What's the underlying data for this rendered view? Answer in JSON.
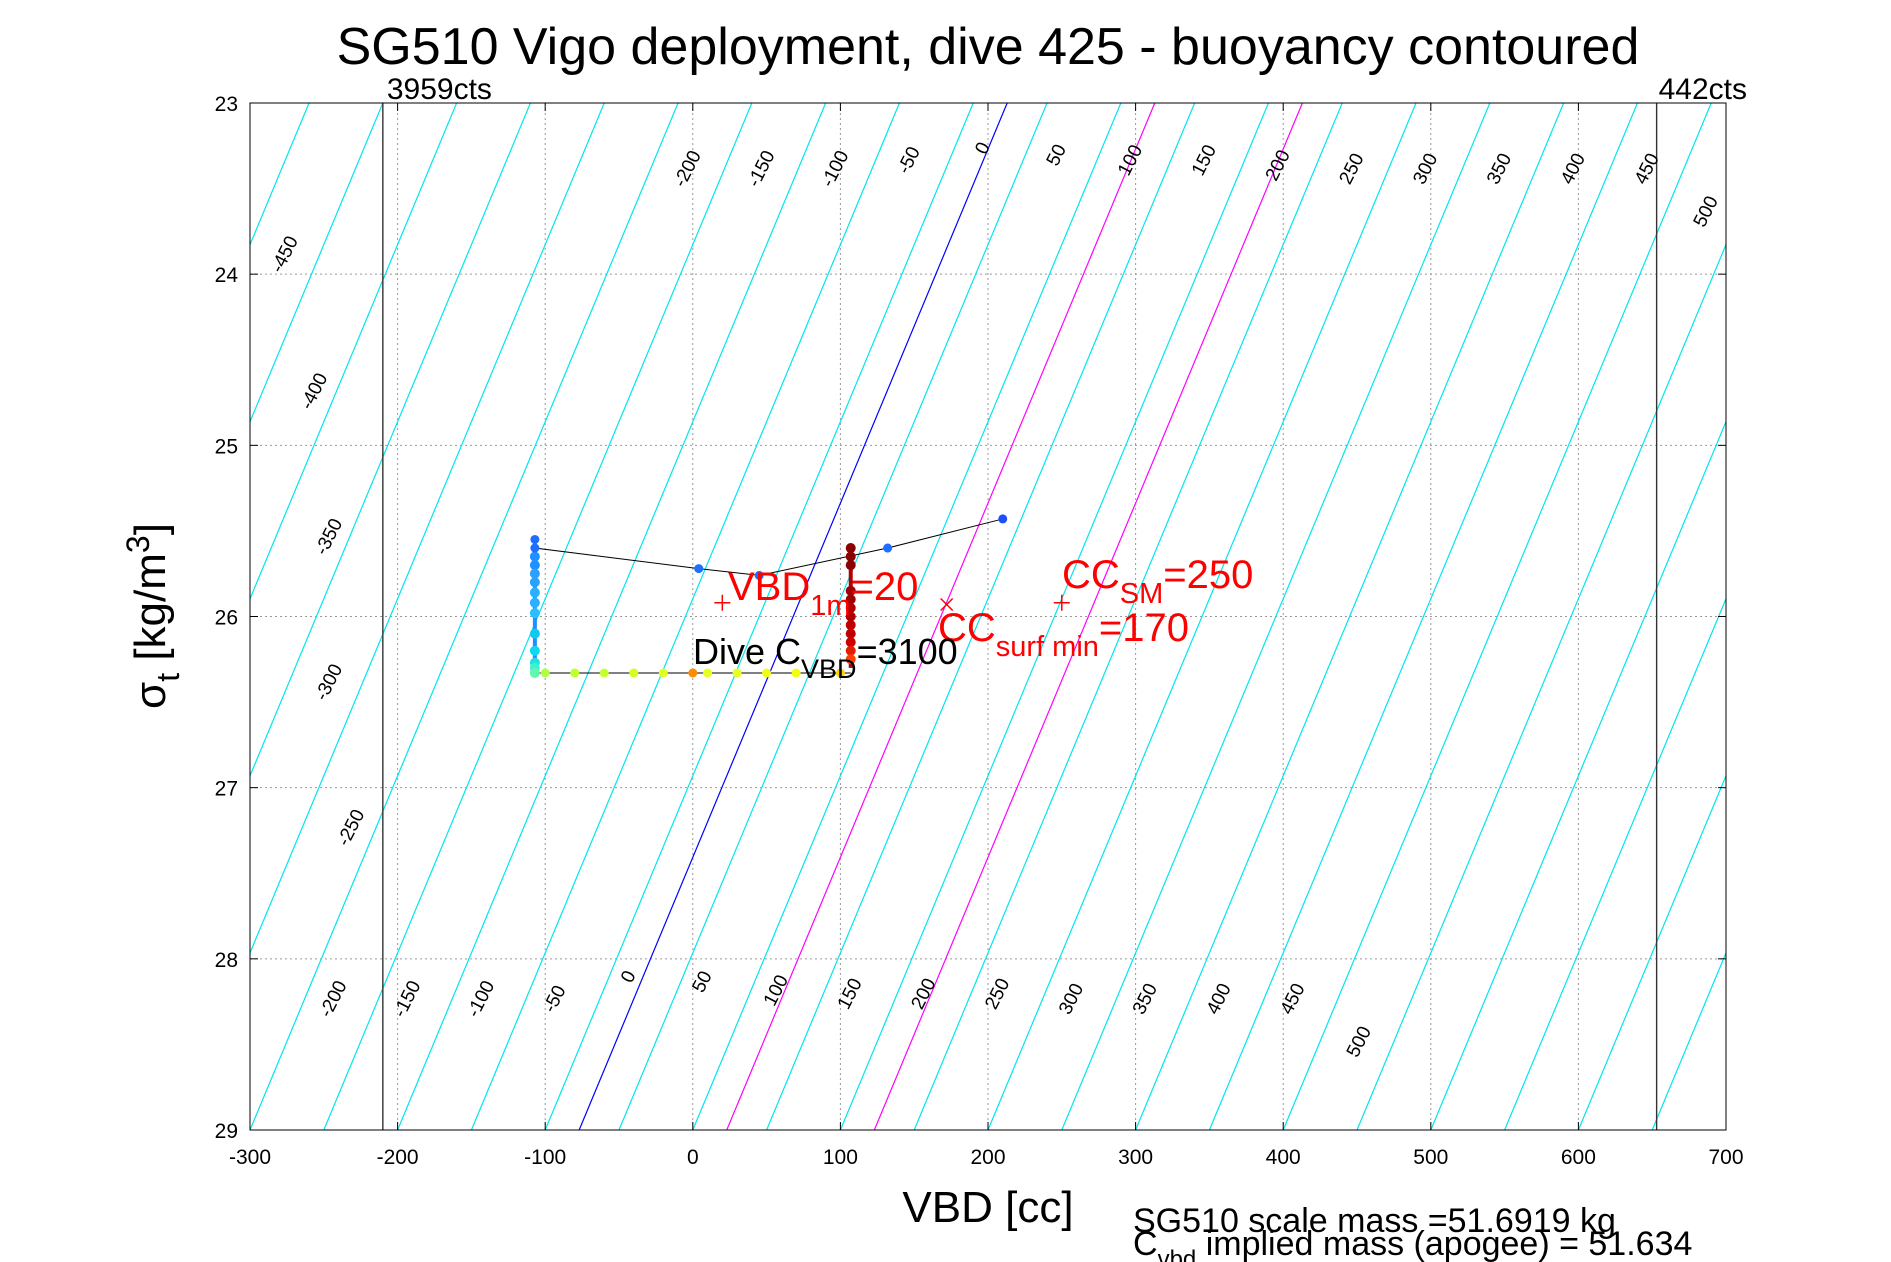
{
  "chart_data": {
    "type": "scatter",
    "title": "SG510 Vigo deployment, dive 425 - buoyancy contoured",
    "xlabel": "VBD [cc]",
    "ylabel": {
      "main": "σ",
      "sub": "t",
      "rest": " [kg/m",
      "sup": "3",
      "end": "]"
    },
    "xlim": [
      -300,
      700
    ],
    "ylim": [
      23,
      29
    ],
    "y_reversed": true,
    "grid": true,
    "xticks": [
      -300,
      -200,
      -100,
      0,
      100,
      200,
      300,
      400,
      500,
      600,
      700
    ],
    "yticks": [
      23,
      24,
      25,
      26,
      27,
      28,
      29
    ],
    "colors": {
      "contour": "#00e5ee",
      "zero_contour": "#0000ff",
      "mass_contours": "#ff00ff",
      "annotation": "#ff0000",
      "profile_line": "#000000"
    },
    "vertical_lines": [
      {
        "x": -210,
        "label": "3959cts"
      },
      {
        "x": 653,
        "label": "442cts"
      }
    ],
    "contours": {
      "slope_cc_per_sigma": 147,
      "top_labels": [
        "-450",
        "-400",
        "-350",
        "-300",
        "-250",
        "-200",
        "-150",
        "-100",
        "-50",
        "0",
        "50",
        "100",
        "150",
        "200",
        "250",
        "300",
        "350",
        "400",
        "450",
        "500"
      ],
      "bottom_labels": [
        "-200",
        "-150",
        "-100",
        "-50",
        "0",
        "50",
        "100",
        "150",
        "200",
        "250",
        "300",
        "350",
        "400",
        "450",
        "500"
      ],
      "top_label_positions": [
        {
          "text": "-450",
          "vbd": -273,
          "sigma": 23.9
        },
        {
          "text": "-400",
          "vbd": -253,
          "sigma": 24.7
        },
        {
          "text": "-350",
          "vbd": -243,
          "sigma": 25.55
        },
        {
          "text": "-300",
          "vbd": -243,
          "sigma": 26.4
        },
        {
          "text": "-250",
          "vbd": -228,
          "sigma": 27.25
        },
        {
          "text": "-200",
          "vbd": 0,
          "sigma": 23.4
        },
        {
          "text": "-150",
          "vbd": 50,
          "sigma": 23.4
        },
        {
          "text": "-100",
          "vbd": 100,
          "sigma": 23.4
        },
        {
          "text": "-50",
          "vbd": 150,
          "sigma": 23.35
        },
        {
          "text": "0",
          "vbd": 200,
          "sigma": 23.28
        },
        {
          "text": "50",
          "vbd": 250,
          "sigma": 23.32
        },
        {
          "text": "100",
          "vbd": 300,
          "sigma": 23.35
        },
        {
          "text": "150",
          "vbd": 350,
          "sigma": 23.35
        },
        {
          "text": "200",
          "vbd": 400,
          "sigma": 23.38
        },
        {
          "text": "250",
          "vbd": 450,
          "sigma": 23.4
        },
        {
          "text": "300",
          "vbd": 500,
          "sigma": 23.4
        },
        {
          "text": "350",
          "vbd": 550,
          "sigma": 23.4
        },
        {
          "text": "400",
          "vbd": 600,
          "sigma": 23.4
        },
        {
          "text": "450",
          "vbd": 650,
          "sigma": 23.4
        },
        {
          "text": "500",
          "vbd": 690,
          "sigma": 23.65
        }
      ],
      "bottom_label_positions": [
        {
          "text": "-200",
          "vbd": -240,
          "sigma": 28.25
        },
        {
          "text": "-150",
          "vbd": -190,
          "sigma": 28.25
        },
        {
          "text": "-100",
          "vbd": -140,
          "sigma": 28.25
        },
        {
          "text": "-50",
          "vbd": -90,
          "sigma": 28.25
        },
        {
          "text": "0",
          "vbd": -40,
          "sigma": 28.12
        },
        {
          "text": "50",
          "vbd": 10,
          "sigma": 28.15
        },
        {
          "text": "100",
          "vbd": 60,
          "sigma": 28.2
        },
        {
          "text": "150",
          "vbd": 110,
          "sigma": 28.22
        },
        {
          "text": "200",
          "vbd": 160,
          "sigma": 28.22
        },
        {
          "text": "250",
          "vbd": 210,
          "sigma": 28.22
        },
        {
          "text": "300",
          "vbd": 260,
          "sigma": 28.25
        },
        {
          "text": "350",
          "vbd": 310,
          "sigma": 28.25
        },
        {
          "text": "400",
          "vbd": 360,
          "sigma": 28.25
        },
        {
          "text": "450",
          "vbd": 410,
          "sigma": 28.25
        },
        {
          "text": "500",
          "vbd": 455,
          "sigma": 28.5
        }
      ]
    },
    "zero_line": {
      "x_at_top": 213,
      "x_at_bottom": -77
    },
    "magenta_lines": [
      {
        "x_at_top": 313,
        "x_at_bottom": 23
      },
      {
        "x_at_top": 413,
        "x_at_bottom": 123
      }
    ],
    "profile": [
      {
        "vbd": -107,
        "sigma": 25.55,
        "color": "#1e6fff"
      },
      {
        "vbd": -107,
        "sigma": 25.6,
        "color": "#1e6fff"
      },
      {
        "vbd": 4,
        "sigma": 25.72,
        "color": "#1e6fff"
      },
      {
        "vbd": 45,
        "sigma": 25.76,
        "color": "#1e6fff"
      },
      {
        "vbd": 132,
        "sigma": 25.6,
        "color": "#1e6fff"
      },
      {
        "vbd": 210,
        "sigma": 25.43,
        "color": "#1e4fff"
      }
    ],
    "descent_points": [
      {
        "vbd": -107,
        "sigma": 25.65,
        "color": "#1e90ff"
      },
      {
        "vbd": -107,
        "sigma": 25.7,
        "color": "#1e90ff"
      },
      {
        "vbd": -107,
        "sigma": 25.75,
        "color": "#2aa0ff"
      },
      {
        "vbd": -107,
        "sigma": 25.8,
        "color": "#2aa0ff"
      },
      {
        "vbd": -107,
        "sigma": 25.86,
        "color": "#2ab0ff"
      },
      {
        "vbd": -107,
        "sigma": 25.92,
        "color": "#2ab0ff"
      },
      {
        "vbd": -107,
        "sigma": 25.98,
        "color": "#2ac0ff"
      },
      {
        "vbd": -107,
        "sigma": 26.1,
        "color": "#10c8f0"
      },
      {
        "vbd": -107,
        "sigma": 26.2,
        "color": "#10d8f0"
      },
      {
        "vbd": -107,
        "sigma": 26.27,
        "color": "#20e0e0"
      },
      {
        "vbd": -107,
        "sigma": 26.3,
        "color": "#40f0d0"
      },
      {
        "vbd": -107,
        "sigma": 26.33,
        "color": "#60f8b0"
      }
    ],
    "bottom_points": [
      {
        "vbd": -100,
        "sigma": 26.33,
        "color": "#b0ff40"
      },
      {
        "vbd": -80,
        "sigma": 26.33,
        "color": "#c0ff30"
      },
      {
        "vbd": -60,
        "sigma": 26.33,
        "color": "#c8ff30"
      },
      {
        "vbd": -40,
        "sigma": 26.33,
        "color": "#d0ff20"
      },
      {
        "vbd": -20,
        "sigma": 26.33,
        "color": "#e0ff20"
      },
      {
        "vbd": 0,
        "sigma": 26.33,
        "color": "#ff8c00"
      },
      {
        "vbd": 10,
        "sigma": 26.33,
        "color": "#e8ff20"
      },
      {
        "vbd": 30,
        "sigma": 26.33,
        "color": "#e8ff20"
      },
      {
        "vbd": 50,
        "sigma": 26.33,
        "color": "#f0ff10"
      },
      {
        "vbd": 70,
        "sigma": 26.33,
        "color": "#f0ff10"
      },
      {
        "vbd": 100,
        "sigma": 26.33,
        "color": "#ffd000"
      }
    ],
    "ascent_points": [
      {
        "vbd": 107,
        "sigma": 25.6,
        "color": "#8b0000"
      },
      {
        "vbd": 107,
        "sigma": 25.65,
        "color": "#8b0000"
      },
      {
        "vbd": 107,
        "sigma": 25.7,
        "color": "#8b0000"
      },
      {
        "vbd": 107,
        "sigma": 25.85,
        "color": "#a00000"
      },
      {
        "vbd": 107,
        "sigma": 25.9,
        "color": "#a00000"
      },
      {
        "vbd": 107,
        "sigma": 25.95,
        "color": "#b00000"
      },
      {
        "vbd": 107,
        "sigma": 26.0,
        "color": "#b00000"
      },
      {
        "vbd": 107,
        "sigma": 26.05,
        "color": "#c00000"
      },
      {
        "vbd": 107,
        "sigma": 26.1,
        "color": "#c00000"
      },
      {
        "vbd": 107,
        "sigma": 26.15,
        "color": "#d00000"
      },
      {
        "vbd": 107,
        "sigma": 26.2,
        "color": "#e02000"
      },
      {
        "vbd": 107,
        "sigma": 26.25,
        "color": "#ff4000"
      }
    ],
    "markers": [
      {
        "type": "plus",
        "vbd": 20,
        "sigma": 25.92,
        "color": "#ff0000"
      },
      {
        "type": "cross",
        "vbd": 172,
        "sigma": 25.93,
        "color": "#ff0000"
      },
      {
        "type": "plus",
        "vbd": 250,
        "sigma": 25.92,
        "color": "#ff0000"
      }
    ],
    "annotations": {
      "vbd1m": {
        "main": "VBD",
        "sub": "1m",
        "rest": "=20"
      },
      "cc_surf_min": {
        "main": "CC",
        "sub": "surf min",
        "rest": "=170"
      },
      "cc_sm": {
        "main": "CC",
        "sub": "SM",
        "rest": "=250"
      },
      "dive_cvbd": {
        "main": "Dive C",
        "sub": "VBD",
        "rest": "=3100"
      }
    },
    "footer": {
      "line1": "SG510 scale mass =51.6919 kg",
      "line2_main": "C",
      "line2_sub": "vbd",
      "line2_rest": " implied mass (apogee) = 51.634"
    }
  }
}
